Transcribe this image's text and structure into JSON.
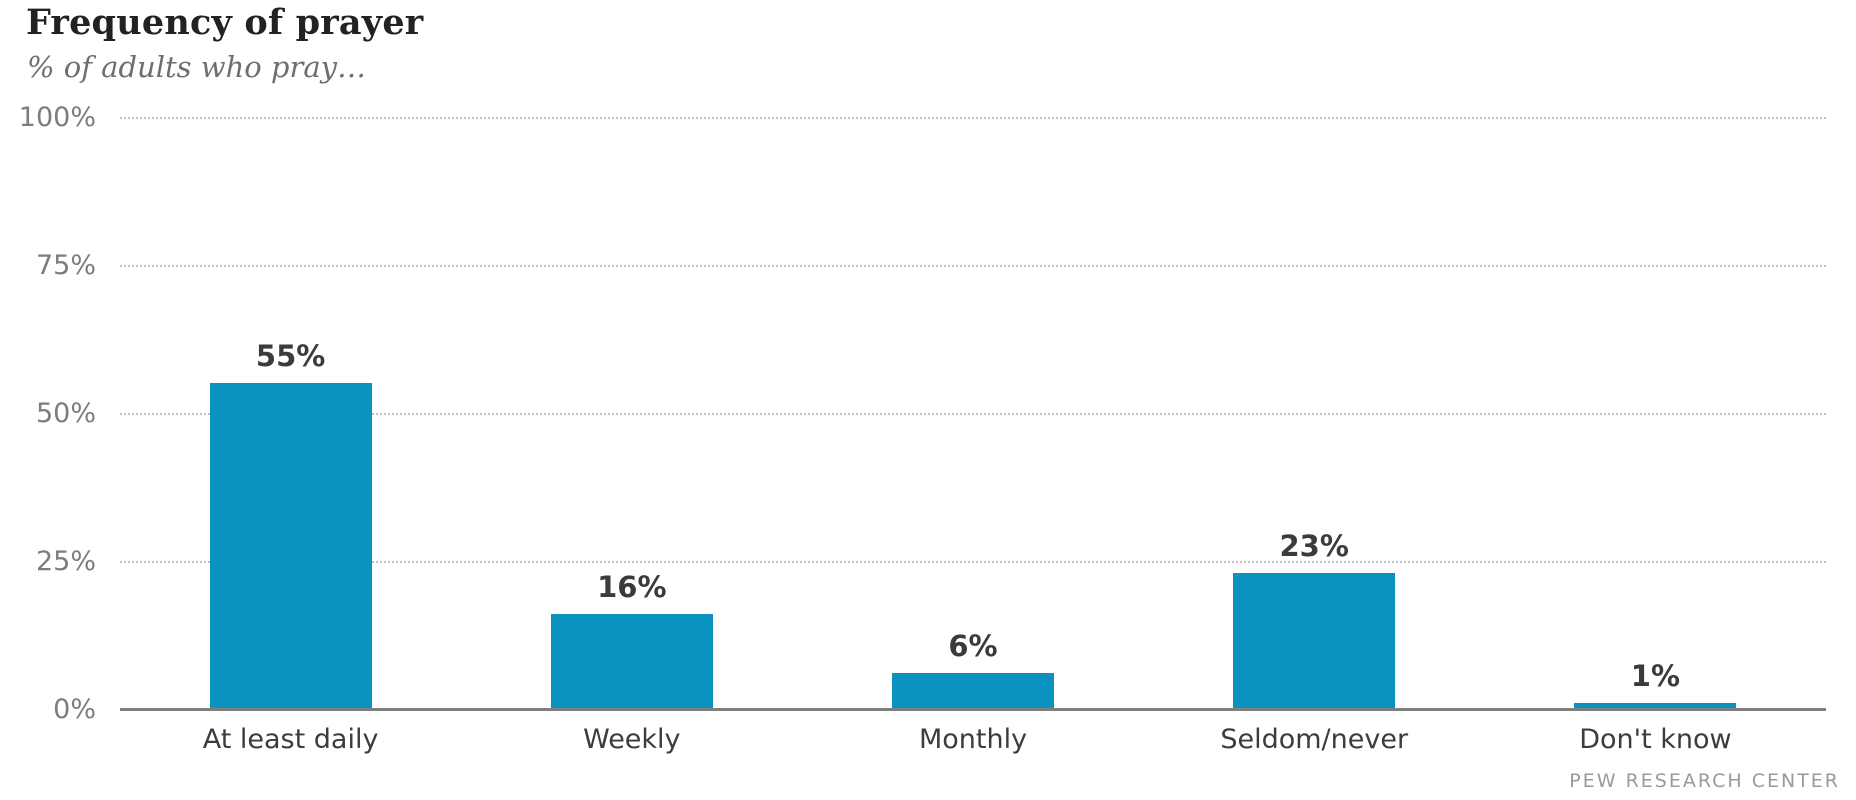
{
  "header": {
    "title": "Frequency of prayer",
    "subtitle": "% of adults who pray…"
  },
  "footer": {
    "source_label": "PEW RESEARCH CENTER"
  },
  "chart_data": {
    "type": "bar",
    "title": "Frequency of prayer",
    "subtitle": "% of adults who pray…",
    "categories": [
      "At least daily",
      "Weekly",
      "Monthly",
      "Seldom/never",
      "Don't know"
    ],
    "values": [
      55,
      16,
      6,
      23,
      1
    ],
    "value_labels": [
      "55%",
      "16%",
      "6%",
      "23%",
      "1%"
    ],
    "xlabel": "",
    "ylabel": "",
    "ylim": [
      0,
      100
    ],
    "yticks": [
      {
        "label": "100%",
        "value": 100
      },
      {
        "label": "75%",
        "value": 75
      },
      {
        "label": "50%",
        "value": 50
      },
      {
        "label": "25%",
        "value": 25
      },
      {
        "label": "0%",
        "value": 0
      }
    ],
    "grid": "horizontal-dotted",
    "legend": "none",
    "bar_color": "#0b92c1",
    "gridline_color": "#c2c2c2",
    "axis_line_color": "#7f7f7f",
    "source": "PEW RESEARCH CENTER"
  }
}
